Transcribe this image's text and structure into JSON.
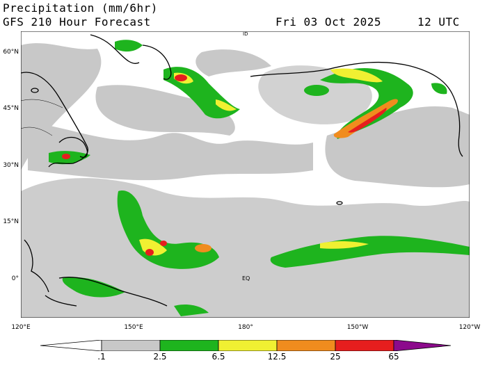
{
  "header": {
    "title": "Precipitation (mm/6hr)",
    "subtitle": "GFS 210 Hour Forecast",
    "date": "Fri 03 Oct 2025",
    "time": "12 UTC"
  },
  "axes": {
    "lat_labels": [
      "60°N",
      "45°N",
      "30°N",
      "15°N",
      "0°"
    ],
    "lon_labels": [
      "120°E",
      "150°E",
      "180°",
      "150°W",
      "120°W"
    ]
  },
  "map_labels": {
    "equator": "EQ",
    "dateline": "ID"
  },
  "legend": {
    "values": [
      ".1",
      "2.5",
      "6.5",
      "12.5",
      "25",
      "65"
    ],
    "colors": {
      "light": "#c8c8c8",
      "green": "#1eb41e",
      "yellow": "#f0f032",
      "orange": "#f08c1e",
      "red": "#e61e1e",
      "purple": "#8c0a8c"
    }
  }
}
